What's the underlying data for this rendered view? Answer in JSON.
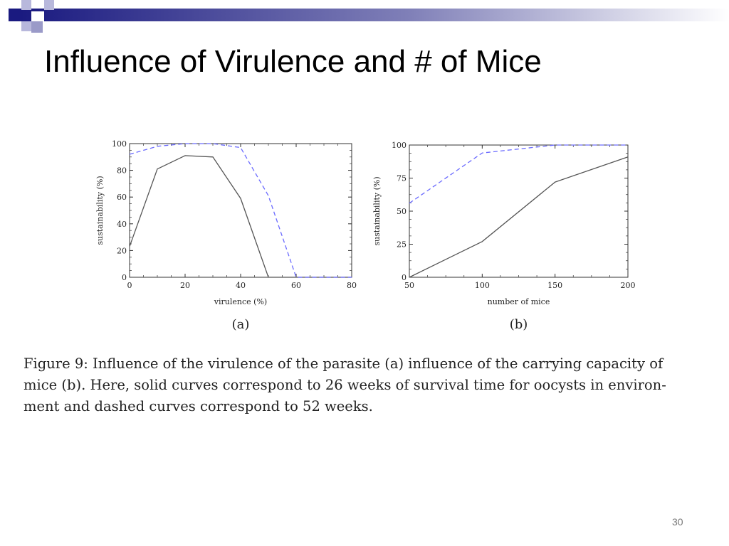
{
  "slide": {
    "title": "Influence of Virulence and # of Mice",
    "page_number": "30",
    "caption_lines": [
      "Figure 9:  Influence of the virulence of the parasite (a) influence of the carrying capacity of",
      "mice (b).  Here, solid curves correspond to 26 weeks of survival time for oocysts in environ-",
      "ment and dashed curves correspond to 52 weeks."
    ]
  },
  "colors": {
    "solid_line": "#555555",
    "dashed_line": "#6b6bff",
    "deco_dark": "#1a1a80",
    "deco_light": "#9999cc"
  },
  "chart_data": [
    {
      "type": "line",
      "panel_label": "(a)",
      "xlabel": "virulence (%)",
      "ylabel": "sustainability (%)",
      "xlim": [
        0,
        80
      ],
      "ylim": [
        0,
        100
      ],
      "xticks": [
        0,
        20,
        40,
        60,
        80
      ],
      "yticks": [
        0,
        20,
        40,
        60,
        80,
        100
      ],
      "series": [
        {
          "style": "solid",
          "x": [
            0,
            10,
            20,
            30,
            40,
            50,
            60,
            70,
            80
          ],
          "y": [
            23,
            81,
            91,
            90,
            59,
            0,
            0,
            0,
            0
          ]
        },
        {
          "style": "dashed",
          "x": [
            0,
            10,
            20,
            30,
            40,
            50,
            60,
            70,
            80
          ],
          "y": [
            92,
            98,
            100,
            100,
            97,
            61,
            0,
            0,
            0
          ]
        }
      ]
    },
    {
      "type": "line",
      "panel_label": "(b)",
      "xlabel": "number of mice",
      "ylabel": "sustainability (%)",
      "xlim": [
        50,
        200
      ],
      "ylim": [
        0,
        100
      ],
      "xticks": [
        50,
        100,
        150,
        200
      ],
      "yticks": [
        0,
        25,
        50,
        75,
        100
      ],
      "series": [
        {
          "style": "solid",
          "x": [
            50,
            100,
            150,
            200
          ],
          "y": [
            0,
            27,
            72,
            91
          ]
        },
        {
          "style": "dashed",
          "x": [
            50,
            100,
            150,
            200
          ],
          "y": [
            56,
            94,
            100,
            100
          ]
        }
      ]
    }
  ]
}
